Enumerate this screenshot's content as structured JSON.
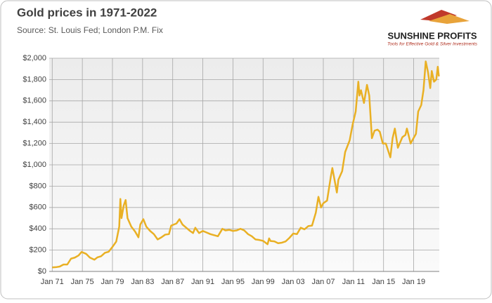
{
  "logo": {
    "name": "SUNSHINE PROFITS",
    "tagline": "Tools for Effective Gold & Silver Investments"
  },
  "chart_data": {
    "type": "line",
    "title": "Gold prices in 1971-2022",
    "subtitle": "Source: St. Louis Fed; London P.M. Fix",
    "color": "#e9b024",
    "grid": true,
    "xlim": [
      1970.6,
      2022.4
    ],
    "xticks": [
      {
        "value": 1971,
        "label": "Jan 71"
      },
      {
        "value": 1975,
        "label": "Jan 75"
      },
      {
        "value": 1979,
        "label": "Jan 79"
      },
      {
        "value": 1983,
        "label": "Jan 83"
      },
      {
        "value": 1987,
        "label": "Jan 87"
      },
      {
        "value": 1991,
        "label": "Jan 91"
      },
      {
        "value": 1995,
        "label": "Jan 95"
      },
      {
        "value": 1999,
        "label": "Jan 99"
      },
      {
        "value": 2003,
        "label": "Jan 03"
      },
      {
        "value": 2007,
        "label": "Jan 07"
      },
      {
        "value": 2011,
        "label": "Jan 11"
      },
      {
        "value": 2015,
        "label": "Jan 15"
      },
      {
        "value": 2019,
        "label": "Jan 19"
      }
    ],
    "ylim": [
      0,
      2000
    ],
    "yticks": [
      {
        "value": 0,
        "label": "$0"
      },
      {
        "value": 200,
        "label": "$200"
      },
      {
        "value": 400,
        "label": "$400"
      },
      {
        "value": 600,
        "label": "$600"
      },
      {
        "value": 800,
        "label": "$800"
      },
      {
        "value": 1000,
        "label": "$1,000"
      },
      {
        "value": 1200,
        "label": "$1,200"
      },
      {
        "value": 1400,
        "label": "$1,400"
      },
      {
        "value": 1600,
        "label": "$1,600"
      },
      {
        "value": 1800,
        "label": "$1,800"
      },
      {
        "value": 2000,
        "label": "$2,000"
      }
    ],
    "x": [
      1971.0,
      1971.5,
      1972.0,
      1972.5,
      1973.0,
      1973.5,
      1974.0,
      1974.5,
      1974.9,
      1975.5,
      1976.0,
      1976.6,
      1977.0,
      1977.5,
      1978.0,
      1978.5,
      1979.0,
      1979.5,
      1979.9,
      1980.05,
      1980.2,
      1980.5,
      1980.75,
      1981.0,
      1981.5,
      1982.0,
      1982.45,
      1982.7,
      1983.1,
      1983.5,
      1984.0,
      1984.5,
      1985.0,
      1985.5,
      1986.0,
      1986.5,
      1986.8,
      1987.5,
      1987.9,
      1988.3,
      1988.8,
      1989.3,
      1989.7,
      1990.0,
      1990.5,
      1991.0,
      1991.5,
      1992.0,
      1992.5,
      1993.0,
      1993.6,
      1994.0,
      1994.5,
      1995.0,
      1995.5,
      1996.0,
      1996.5,
      1997.0,
      1997.5,
      1998.0,
      1998.5,
      1999.0,
      1999.6,
      1999.8,
      2000.0,
      2000.5,
      2001.0,
      2001.5,
      2002.0,
      2002.5,
      2003.0,
      2003.5,
      2004.0,
      2004.5,
      2005.0,
      2005.5,
      2006.0,
      2006.35,
      2006.7,
      2007.0,
      2007.5,
      2008.0,
      2008.2,
      2008.8,
      2009.0,
      2009.5,
      2009.9,
      2010.5,
      2010.9,
      2011.3,
      2011.65,
      2011.8,
      2012.0,
      2012.4,
      2012.8,
      2013.1,
      2013.45,
      2013.8,
      2014.2,
      2014.5,
      2014.9,
      2015.3,
      2015.9,
      2016.2,
      2016.5,
      2016.9,
      2017.5,
      2017.9,
      2018.1,
      2018.6,
      2018.9,
      2019.3,
      2019.6,
      2020.0,
      2020.3,
      2020.6,
      2020.9,
      2021.2,
      2021.4,
      2021.7,
      2022.0,
      2022.2,
      2022.35
    ],
    "values": [
      38,
      40,
      46,
      65,
      65,
      120,
      130,
      150,
      183,
      165,
      130,
      110,
      132,
      143,
      175,
      185,
      230,
      280,
      420,
      680,
      500,
      620,
      670,
      500,
      420,
      375,
      320,
      440,
      490,
      420,
      380,
      350,
      300,
      320,
      345,
      350,
      430,
      450,
      490,
      440,
      410,
      380,
      360,
      410,
      360,
      380,
      365,
      350,
      340,
      330,
      400,
      385,
      390,
      380,
      385,
      400,
      385,
      350,
      330,
      300,
      295,
      287,
      255,
      310,
      285,
      282,
      265,
      270,
      282,
      315,
      355,
      350,
      410,
      395,
      425,
      430,
      550,
      700,
      600,
      640,
      665,
      890,
      970,
      740,
      860,
      940,
      1120,
      1230,
      1380,
      1500,
      1780,
      1650,
      1700,
      1580,
      1750,
      1650,
      1250,
      1320,
      1330,
      1310,
      1200,
      1200,
      1070,
      1250,
      1340,
      1160,
      1260,
      1280,
      1340,
      1200,
      1240,
      1290,
      1500,
      1560,
      1700,
      1970,
      1870,
      1720,
      1880,
      1780,
      1800,
      1920,
      1830
    ]
  }
}
